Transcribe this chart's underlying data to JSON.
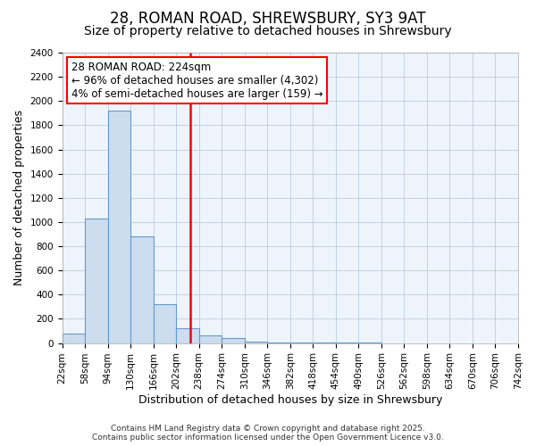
{
  "title_line1": "28, ROMAN ROAD, SHREWSBURY, SY3 9AT",
  "title_line2": "Size of property relative to detached houses in Shrewsbury",
  "xlabel": "Distribution of detached houses by size in Shrewsbury",
  "ylabel": "Number of detached properties",
  "bin_edges": [
    22,
    58,
    94,
    130,
    166,
    202,
    238,
    274,
    310,
    346,
    382,
    418,
    454,
    490,
    526,
    562,
    598,
    634,
    670,
    706,
    742
  ],
  "bar_heights": [
    80,
    1030,
    1920,
    880,
    320,
    120,
    60,
    40,
    10,
    5,
    3,
    2,
    1,
    1,
    0,
    0,
    0,
    0,
    0,
    0
  ],
  "bar_facecolor": "#ccddf0",
  "bar_edgecolor": "#6699cc",
  "bar_linewidth": 0.8,
  "grid_color": "#bbccdd",
  "plot_bg_color": "#eef4fb",
  "fig_bg_color": "#ffffff",
  "vline_x": 224,
  "vline_color": "red",
  "vline_linewidth": 1.8,
  "ylim": [
    0,
    2400
  ],
  "yticks": [
    0,
    200,
    400,
    600,
    800,
    1000,
    1200,
    1400,
    1600,
    1800,
    2000,
    2200,
    2400
  ],
  "annotation_text": "28 ROMAN ROAD: 224sqm\n← 96% of detached houses are smaller (4,302)\n4% of semi-detached houses are larger (159) →",
  "annotation_fontsize": 8.5,
  "annotation_box_edgecolor": "red",
  "annotation_box_facecolor": "white",
  "footer_text": "Contains HM Land Registry data © Crown copyright and database right 2025.\nContains public sector information licensed under the Open Government Licence v3.0.",
  "title_fontsize": 12,
  "subtitle_fontsize": 10,
  "xlabel_fontsize": 9,
  "ylabel_fontsize": 9,
  "tick_fontsize": 7.5,
  "footer_fontsize": 6.5
}
